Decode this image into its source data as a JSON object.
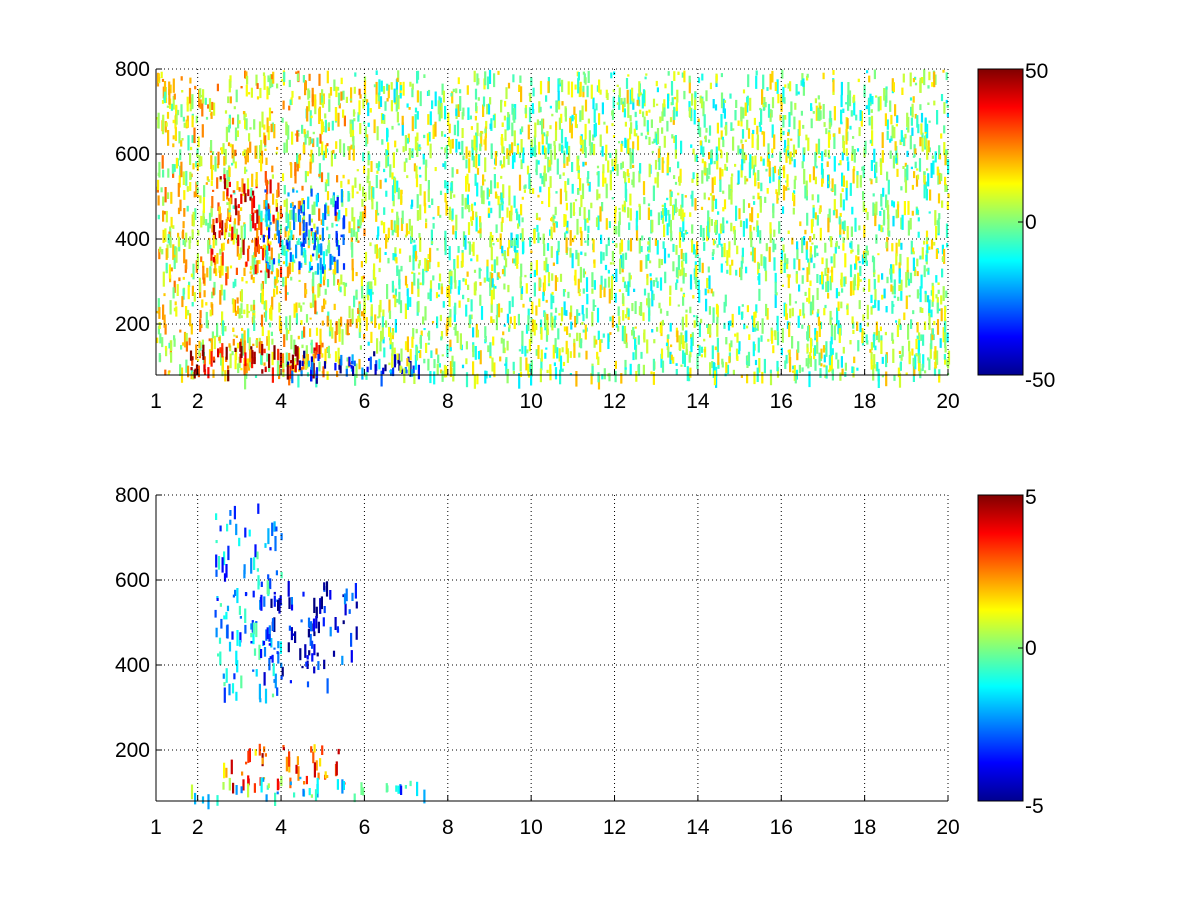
{
  "chart_data": [
    {
      "type": "heatmap",
      "title": "",
      "xlabel": "",
      "ylabel": "",
      "xlim": [
        1,
        20
      ],
      "ylim": [
        80,
        800
      ],
      "x_ticks": [
        1,
        2,
        4,
        6,
        8,
        10,
        12,
        14,
        16,
        18,
        20
      ],
      "x_tick_labels": [
        "1",
        "2",
        "4",
        "6",
        "8",
        "10",
        "12",
        "14",
        "16",
        "18",
        "20"
      ],
      "y_ticks": [
        200,
        400,
        600,
        800
      ],
      "y_tick_labels": [
        "200",
        "400",
        "600",
        "800"
      ],
      "grid": true,
      "colormap": "jet",
      "clim": [
        -50,
        50
      ],
      "colorbar_ticks": [
        -50,
        0,
        50
      ],
      "colorbar_tick_labels": [
        "-50",
        "0",
        "50"
      ],
      "features": [
        {
          "x_range": [
            1.0,
            6.0
          ],
          "y_range": [
            80,
            800
          ],
          "value": 10,
          "note": ""
        },
        {
          "x_range": [
            2.3,
            4.0
          ],
          "y_range": [
            320,
            560
          ],
          "value": 30,
          "note": ""
        },
        {
          "x_range": [
            3.5,
            5.5
          ],
          "y_range": [
            330,
            520
          ],
          "value": -20,
          "note": ""
        },
        {
          "x_range": [
            1.7,
            5.0
          ],
          "y_range": [
            90,
            160
          ],
          "value": 40,
          "note": ""
        },
        {
          "x_range": [
            4.0,
            7.5
          ],
          "y_range": [
            90,
            140
          ],
          "value": -35,
          "note": ""
        },
        {
          "x_range": [
            6.0,
            20.0
          ],
          "y_range": [
            80,
            800
          ],
          "value": 2,
          "note": ""
        }
      ]
    },
    {
      "type": "heatmap",
      "title": "",
      "xlabel": "",
      "ylabel": "",
      "xlim": [
        1,
        20
      ],
      "ylim": [
        80,
        800
      ],
      "x_ticks": [
        1,
        2,
        4,
        6,
        8,
        10,
        12,
        14,
        16,
        18,
        20
      ],
      "x_tick_labels": [
        "1",
        "2",
        "4",
        "6",
        "8",
        "10",
        "12",
        "14",
        "16",
        "18",
        "20"
      ],
      "y_ticks": [
        200,
        400,
        600,
        800
      ],
      "y_tick_labels": [
        "200",
        "400",
        "600",
        "800"
      ],
      "grid": true,
      "colormap": "jet",
      "clim": [
        -5,
        5
      ],
      "colorbar_ticks": [
        -5,
        0,
        5
      ],
      "colorbar_tick_labels": [
        "-5",
        "0",
        "5"
      ],
      "features": [
        {
          "x_range": [
            2.4,
            4.0
          ],
          "y_range": [
            320,
            780
          ],
          "value": -2,
          "note": ""
        },
        {
          "x_range": [
            3.5,
            5.8
          ],
          "y_range": [
            360,
            600
          ],
          "value": -4,
          "note": ""
        },
        {
          "x_range": [
            2.5,
            5.5
          ],
          "y_range": [
            120,
            220
          ],
          "value": 3,
          "note": ""
        },
        {
          "x_range": [
            1.8,
            6.0
          ],
          "y_range": [
            90,
            140
          ],
          "value": -1,
          "note": ""
        },
        {
          "x_range": [
            6.0,
            8.1
          ],
          "y_range": [
            100,
            130
          ],
          "value": -2,
          "note": ""
        }
      ]
    }
  ]
}
